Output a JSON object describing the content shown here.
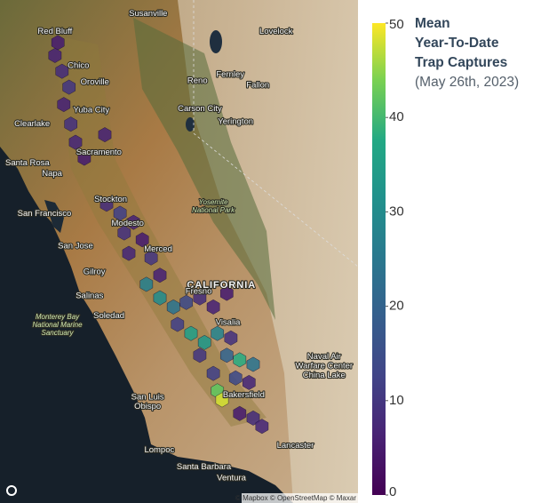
{
  "colorbar": {
    "title": [
      "Mean",
      "Year-To-Date",
      "Trap Captures"
    ],
    "subtitle": "(May 26th, 2023)",
    "clim": [
      0,
      50
    ],
    "ticks": [
      0,
      10,
      20,
      30,
      40,
      50
    ]
  },
  "attribution": "© Mapbox © OpenStreetMap © Maxar",
  "places": [
    {
      "name": "Susanville",
      "lon": -120.65,
      "lat": 40.42
    },
    {
      "name": "Red Bluff",
      "lon": -122.24,
      "lat": 40.18
    },
    {
      "name": "Lovelock",
      "lon": -118.47,
      "lat": 40.18
    },
    {
      "name": "Chico",
      "lon": -121.84,
      "lat": 39.73
    },
    {
      "name": "Oroville",
      "lon": -121.56,
      "lat": 39.51
    },
    {
      "name": "Reno",
      "lon": -119.81,
      "lat": 39.53
    },
    {
      "name": "Fernley",
      "lon": -119.25,
      "lat": 39.61
    },
    {
      "name": "Fallon",
      "lon": -118.78,
      "lat": 39.47
    },
    {
      "name": "Yuba City",
      "lon": -121.62,
      "lat": 39.14
    },
    {
      "name": "Carson City",
      "lon": -119.77,
      "lat": 39.16
    },
    {
      "name": "Clearlake",
      "lon": -122.63,
      "lat": 38.96
    },
    {
      "name": "Yerington",
      "lon": -119.16,
      "lat": 38.99
    },
    {
      "name": "Santa Rosa",
      "lon": -122.71,
      "lat": 38.44
    },
    {
      "name": "Sacramento",
      "lon": -121.49,
      "lat": 38.58
    },
    {
      "name": "Napa",
      "lon": -122.29,
      "lat": 38.3
    },
    {
      "name": "Stockton",
      "lon": -121.29,
      "lat": 37.96
    },
    {
      "name": "San Francisco",
      "lon": -122.42,
      "lat": 37.77
    },
    {
      "name": "Modesto",
      "lon": -121.0,
      "lat": 37.64
    },
    {
      "name": "San Jose",
      "lon": -121.89,
      "lat": 37.34
    },
    {
      "name": [
        "Yosemite",
        "National Park"
      ],
      "lon": -119.54,
      "lat": 37.87,
      "kind": "park"
    },
    {
      "name": "Merced",
      "lon": -120.48,
      "lat": 37.3
    },
    {
      "name": "Gilroy",
      "lon": -121.57,
      "lat": 37.0
    },
    {
      "name": "CALIFORNIA",
      "lon": -119.4,
      "lat": 36.82,
      "kind": "big"
    },
    {
      "name": "Salinas",
      "lon": -121.65,
      "lat": 36.68
    },
    {
      "name": "Fresno",
      "lon": -119.79,
      "lat": 36.74
    },
    {
      "name": "Soledad",
      "lon": -121.32,
      "lat": 36.42
    },
    {
      "name": [
        "Monterey Bay",
        "National Marine",
        "Sanctuary"
      ],
      "lon": -122.2,
      "lat": 36.3,
      "kind": "park"
    },
    {
      "name": "Visalia",
      "lon": -119.29,
      "lat": 36.33
    },
    {
      "name": [
        "Naval Air",
        "Warfare Center",
        "China Lake"
      ],
      "lon": -117.65,
      "lat": 35.75
    },
    {
      "name": "Bakersfield",
      "lon": -119.02,
      "lat": 35.37
    },
    {
      "name": [
        "San Luis",
        "Obispo"
      ],
      "lon": -120.66,
      "lat": 35.28
    },
    {
      "name": "Lancaster",
      "lon": -118.14,
      "lat": 34.7
    },
    {
      "name": "Lompoc",
      "lon": -120.46,
      "lat": 34.64
    },
    {
      "name": "Santa Barbara",
      "lon": -119.7,
      "lat": 34.42
    },
    {
      "name": "Ventura",
      "lon": -119.23,
      "lat": 34.27
    }
  ],
  "hexbins": [
    {
      "lon": -122.19,
      "lat": 40.03,
      "value": 5
    },
    {
      "lon": -122.24,
      "lat": 39.86,
      "value": 6
    },
    {
      "lon": -122.12,
      "lat": 39.65,
      "value": 8
    },
    {
      "lon": -122.0,
      "lat": 39.44,
      "value": 10
    },
    {
      "lon": -122.09,
      "lat": 39.21,
      "value": 6
    },
    {
      "lon": -121.97,
      "lat": 38.95,
      "value": 9
    },
    {
      "lon": -121.89,
      "lat": 38.71,
      "value": 7
    },
    {
      "lon": -121.74,
      "lat": 38.5,
      "value": 5
    },
    {
      "lon": -121.39,
      "lat": 38.81,
      "value": 6
    },
    {
      "lon": -121.36,
      "lat": 37.89,
      "value": 8
    },
    {
      "lon": -121.13,
      "lat": 37.77,
      "value": 12
    },
    {
      "lon": -120.9,
      "lat": 37.65,
      "value": 6
    },
    {
      "lon": -121.06,
      "lat": 37.51,
      "value": 9
    },
    {
      "lon": -120.75,
      "lat": 37.42,
      "value": 5
    },
    {
      "lon": -120.98,
      "lat": 37.24,
      "value": 7
    },
    {
      "lon": -120.6,
      "lat": 37.18,
      "value": 10
    },
    {
      "lon": -120.45,
      "lat": 36.95,
      "value": 6
    },
    {
      "lon": -120.68,
      "lat": 36.83,
      "value": 27
    },
    {
      "lon": -120.45,
      "lat": 36.65,
      "value": 30
    },
    {
      "lon": -120.22,
      "lat": 36.53,
      "value": 24
    },
    {
      "lon": -120.0,
      "lat": 36.59,
      "value": 14
    },
    {
      "lon": -119.77,
      "lat": 36.65,
      "value": 8
    },
    {
      "lon": -119.54,
      "lat": 36.53,
      "value": 6
    },
    {
      "lon": -119.31,
      "lat": 36.71,
      "value": 5
    },
    {
      "lon": -120.15,
      "lat": 36.3,
      "value": 12
    },
    {
      "lon": -119.92,
      "lat": 36.18,
      "value": 35
    },
    {
      "lon": -119.69,
      "lat": 36.06,
      "value": 33
    },
    {
      "lon": -119.47,
      "lat": 36.18,
      "value": 28
    },
    {
      "lon": -119.24,
      "lat": 36.12,
      "value": 9
    },
    {
      "lon": -119.77,
      "lat": 35.89,
      "value": 10
    },
    {
      "lon": -119.31,
      "lat": 35.89,
      "value": 20
    },
    {
      "lon": -119.09,
      "lat": 35.83,
      "value": 38
    },
    {
      "lon": -118.86,
      "lat": 35.77,
      "value": 24
    },
    {
      "lon": -119.54,
      "lat": 35.65,
      "value": 12
    },
    {
      "lon": -119.16,
      "lat": 35.59,
      "value": 14
    },
    {
      "lon": -119.47,
      "lat": 35.42,
      "value": 42
    },
    {
      "lon": -119.39,
      "lat": 35.3,
      "value": 48
    },
    {
      "lon": -118.93,
      "lat": 35.53,
      "value": 7
    },
    {
      "lon": -119.09,
      "lat": 35.12,
      "value": 5
    },
    {
      "lon": -118.86,
      "lat": 35.06,
      "value": 8
    },
    {
      "lon": -118.71,
      "lat": 34.95,
      "value": 7
    }
  ]
}
